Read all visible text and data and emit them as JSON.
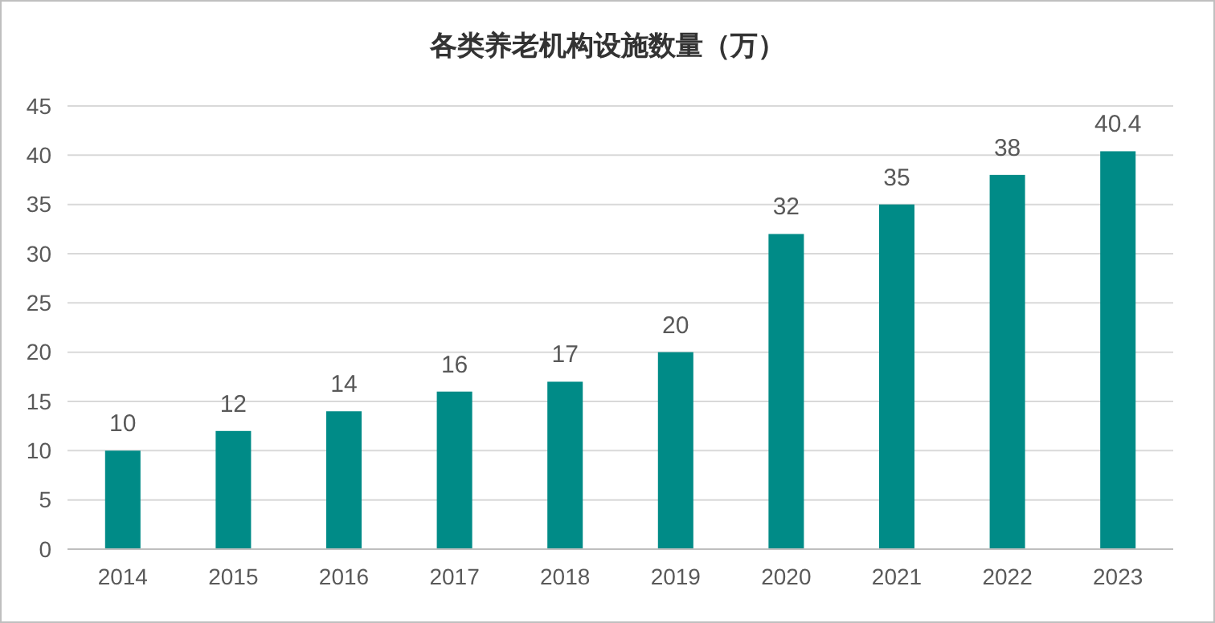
{
  "chart_data": {
    "type": "bar",
    "title": "各类养老机构设施数量（万）",
    "categories": [
      "2014",
      "2015",
      "2016",
      "2017",
      "2018",
      "2019",
      "2020",
      "2021",
      "2022",
      "2023"
    ],
    "values": [
      10,
      12,
      14,
      16,
      17,
      20,
      32,
      35,
      38,
      40.4
    ],
    "color": "#008b87",
    "ylim": [
      0,
      45
    ],
    "yticks": [
      0,
      5,
      10,
      15,
      20,
      25,
      30,
      35,
      40,
      45
    ],
    "grid": "y",
    "data_labels": true
  }
}
